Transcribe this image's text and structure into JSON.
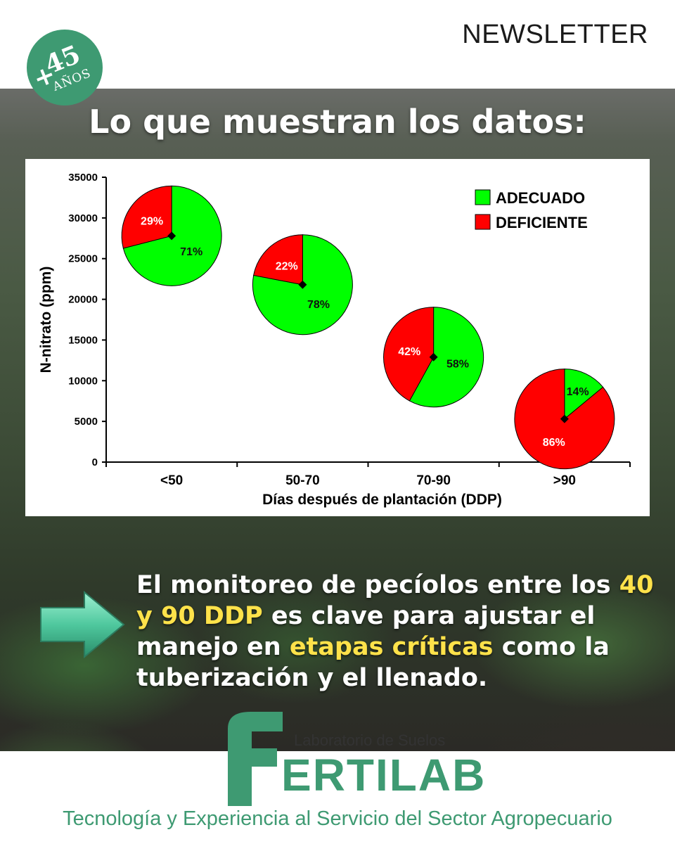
{
  "header": {
    "newsletter": "NEWSLETTER",
    "badge": {
      "plus": "+",
      "number": "45",
      "label": "AÑOS"
    }
  },
  "headline": "Lo que muestran los datos:",
  "chart_data": {
    "type": "pie",
    "layout": "pies positioned on scatter axes (center = N-nitrato mean)",
    "xlabel": "Días después de plantación (DDP)",
    "ylabel": "N-nitrato (ppm)",
    "ylim": [
      0,
      35000
    ],
    "yticks": [
      0,
      5000,
      10000,
      15000,
      20000,
      25000,
      30000,
      35000
    ],
    "categories": [
      "<50",
      "50-70",
      "70-90",
      ">90"
    ],
    "legend": [
      {
        "name": "ADECUADO",
        "color": "#00ff00"
      },
      {
        "name": "DEFICIENTE",
        "color": "#ff0000"
      }
    ],
    "legend_position": "top-right",
    "pies": [
      {
        "category": "<50",
        "center_y": 27800,
        "adecuado": 71,
        "deficiente": 29
      },
      {
        "category": "50-70",
        "center_y": 21800,
        "adecuado": 78,
        "deficiente": 22
      },
      {
        "category": "70-90",
        "center_y": 12900,
        "adecuado": 58,
        "deficiente": 42
      },
      {
        "category": ">90",
        "center_y": 5300,
        "adecuado": 14,
        "deficiente": 86
      }
    ]
  },
  "message": {
    "line1": "El monitoreo de pecíolos entre los",
    "highlight1": "40 y 90 DDP",
    "line2": " es clave para ajustar el manejo en ",
    "highlight2": "etapas críticas",
    "line3": " como la tuberización y el llenado."
  },
  "footer": {
    "lab_name": "Laboratorio de Suelos",
    "logo_first": "F",
    "logo_rest": "ERTILAB",
    "tagline": "Tecnología y Experiencia al Servicio del Sector Agropecuario"
  },
  "colors": {
    "brand_green": "#3e9a72",
    "highlight_yellow": "#ffe24a",
    "adecuado": "#00ff00",
    "deficiente": "#ff0000"
  }
}
